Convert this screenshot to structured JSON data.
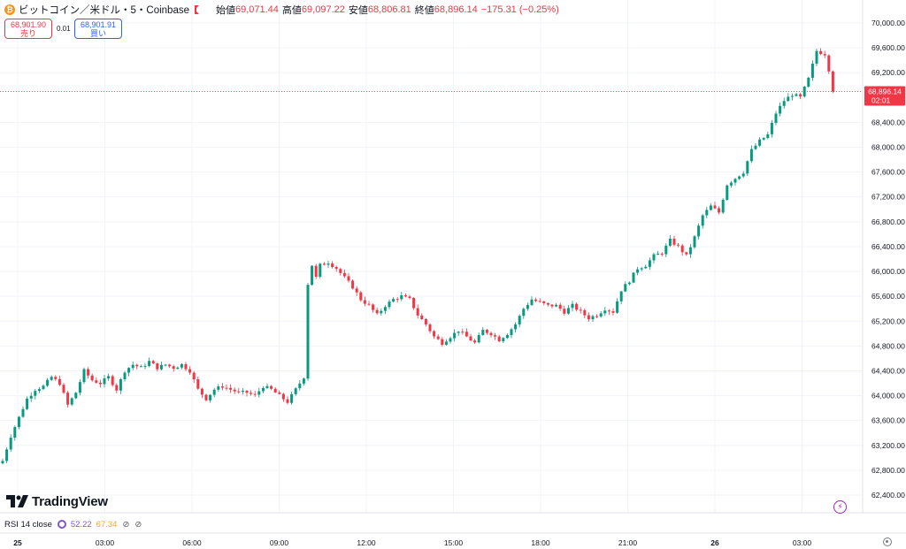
{
  "header": {
    "coin_icon": "bitcoin-icon",
    "symbol": "ビットコイン／米ドル・5・Coinbase",
    "open_label": "始値",
    "open_value": "69,071.44",
    "high_label": "高値",
    "high_value": "69,097.22",
    "low_label": "安値",
    "low_value": "68,806.81",
    "close_label": "終値",
    "close_value": "68,896.14",
    "change": "−175.31 (−0.25%)"
  },
  "trade": {
    "sell_price": "68,901.90",
    "sell_label": "売り",
    "spread": "0.01",
    "buy_price": "68,901.91",
    "buy_label": "買い"
  },
  "price_badge": {
    "price": "68,896.14",
    "countdown": "02:01"
  },
  "logo": {
    "text": "TradingView"
  },
  "rsi": {
    "label": "RSI 14 close",
    "value1": "52.22",
    "value2": "67.34"
  },
  "colors": {
    "up": "#089981",
    "down": "#f23645",
    "grid": "#f0f3fa"
  },
  "chart_data": {
    "type": "candlestick",
    "interval": "5",
    "ylim": [
      62400,
      70000
    ],
    "y_ticks": [
      {
        "value": 62400,
        "label": "62,400.00"
      },
      {
        "value": 62800,
        "label": "62,800.00"
      },
      {
        "value": 63200,
        "label": "63,200.00"
      },
      {
        "value": 63600,
        "label": "63,600.00"
      },
      {
        "value": 64000,
        "label": "64,000.00"
      },
      {
        "value": 64400,
        "label": "64,400.00"
      },
      {
        "value": 64800,
        "label": "64,800.00"
      },
      {
        "value": 65200,
        "label": "65,200.00"
      },
      {
        "value": 65600,
        "label": "65,600.00"
      },
      {
        "value": 66000,
        "label": "66,000.00"
      },
      {
        "value": 66400,
        "label": "66,400.00"
      },
      {
        "value": 66800,
        "label": "66,800.00"
      },
      {
        "value": 67200,
        "label": "67,200.00"
      },
      {
        "value": 67600,
        "label": "67,600.00"
      },
      {
        "value": 68000,
        "label": "68,000.00"
      },
      {
        "value": 68400,
        "label": "68,400.00"
      },
      {
        "value": 69200,
        "label": "69,200.00"
      },
      {
        "value": 69600,
        "label": "69,600.00"
      },
      {
        "value": 70000,
        "label": "70,000.00"
      }
    ],
    "x_ticks": [
      "25",
      "03:00",
      "06:00",
      "09:00",
      "12:00",
      "15:00",
      "18:00",
      "21:00",
      "26",
      "03:00"
    ],
    "x_bold": [
      "25",
      "26"
    ],
    "last_price": 68896.14,
    "close_path": [
      [
        0,
        62950
      ],
      [
        2,
        63350
      ],
      [
        4,
        63650
      ],
      [
        6,
        63950
      ],
      [
        8,
        64100
      ],
      [
        10,
        64150
      ],
      [
        12,
        64300
      ],
      [
        14,
        64200
      ],
      [
        16,
        63850
      ],
      [
        18,
        64050
      ],
      [
        20,
        64400
      ],
      [
        22,
        64250
      ],
      [
        24,
        64200
      ],
      [
        26,
        64300
      ],
      [
        28,
        64100
      ],
      [
        30,
        64400
      ],
      [
        32,
        64500
      ],
      [
        34,
        64450
      ],
      [
        36,
        64550
      ],
      [
        38,
        64450
      ],
      [
        40,
        64500
      ],
      [
        42,
        64450
      ],
      [
        44,
        64500
      ],
      [
        46,
        64400
      ],
      [
        48,
        64100
      ],
      [
        50,
        63950
      ],
      [
        52,
        64100
      ],
      [
        54,
        64150
      ],
      [
        56,
        64100
      ],
      [
        58,
        64050
      ],
      [
        60,
        64050
      ],
      [
        62,
        64000
      ],
      [
        64,
        64150
      ],
      [
        66,
        64100
      ],
      [
        68,
        64000
      ],
      [
        70,
        63900
      ],
      [
        72,
        64100
      ],
      [
        74,
        64300
      ],
      [
        75,
        65800
      ],
      [
        76,
        66100
      ],
      [
        77,
        65900
      ],
      [
        78,
        66100
      ],
      [
        80,
        66150
      ],
      [
        82,
        66050
      ],
      [
        84,
        65900
      ],
      [
        86,
        65750
      ],
      [
        88,
        65550
      ],
      [
        90,
        65450
      ],
      [
        92,
        65300
      ],
      [
        94,
        65450
      ],
      [
        96,
        65550
      ],
      [
        98,
        65600
      ],
      [
        100,
        65550
      ],
      [
        102,
        65300
      ],
      [
        104,
        65150
      ],
      [
        106,
        64950
      ],
      [
        108,
        64850
      ],
      [
        110,
        64950
      ],
      [
        112,
        65050
      ],
      [
        114,
        64950
      ],
      [
        116,
        64850
      ],
      [
        118,
        65050
      ],
      [
        120,
        65000
      ],
      [
        122,
        64900
      ],
      [
        124,
        65000
      ],
      [
        126,
        65150
      ],
      [
        128,
        65400
      ],
      [
        130,
        65550
      ],
      [
        132,
        65500
      ],
      [
        134,
        65450
      ],
      [
        136,
        65450
      ],
      [
        138,
        65350
      ],
      [
        140,
        65450
      ],
      [
        142,
        65350
      ],
      [
        144,
        65250
      ],
      [
        146,
        65300
      ],
      [
        148,
        65400
      ],
      [
        150,
        65350
      ],
      [
        152,
        65700
      ],
      [
        154,
        65850
      ],
      [
        156,
        66050
      ],
      [
        158,
        66100
      ],
      [
        160,
        66250
      ],
      [
        162,
        66300
      ],
      [
        164,
        66500
      ],
      [
        166,
        66400
      ],
      [
        168,
        66250
      ],
      [
        170,
        66550
      ],
      [
        172,
        66900
      ],
      [
        174,
        67050
      ],
      [
        176,
        66950
      ],
      [
        178,
        67400
      ],
      [
        180,
        67500
      ],
      [
        182,
        67600
      ],
      [
        184,
        67950
      ],
      [
        186,
        68100
      ],
      [
        188,
        68200
      ],
      [
        190,
        68550
      ],
      [
        192,
        68750
      ],
      [
        194,
        68850
      ],
      [
        196,
        68800
      ],
      [
        198,
        69100
      ],
      [
        200,
        69550
      ],
      [
        202,
        69500
      ],
      [
        203,
        69250
      ],
      [
        204,
        68896
      ]
    ]
  }
}
